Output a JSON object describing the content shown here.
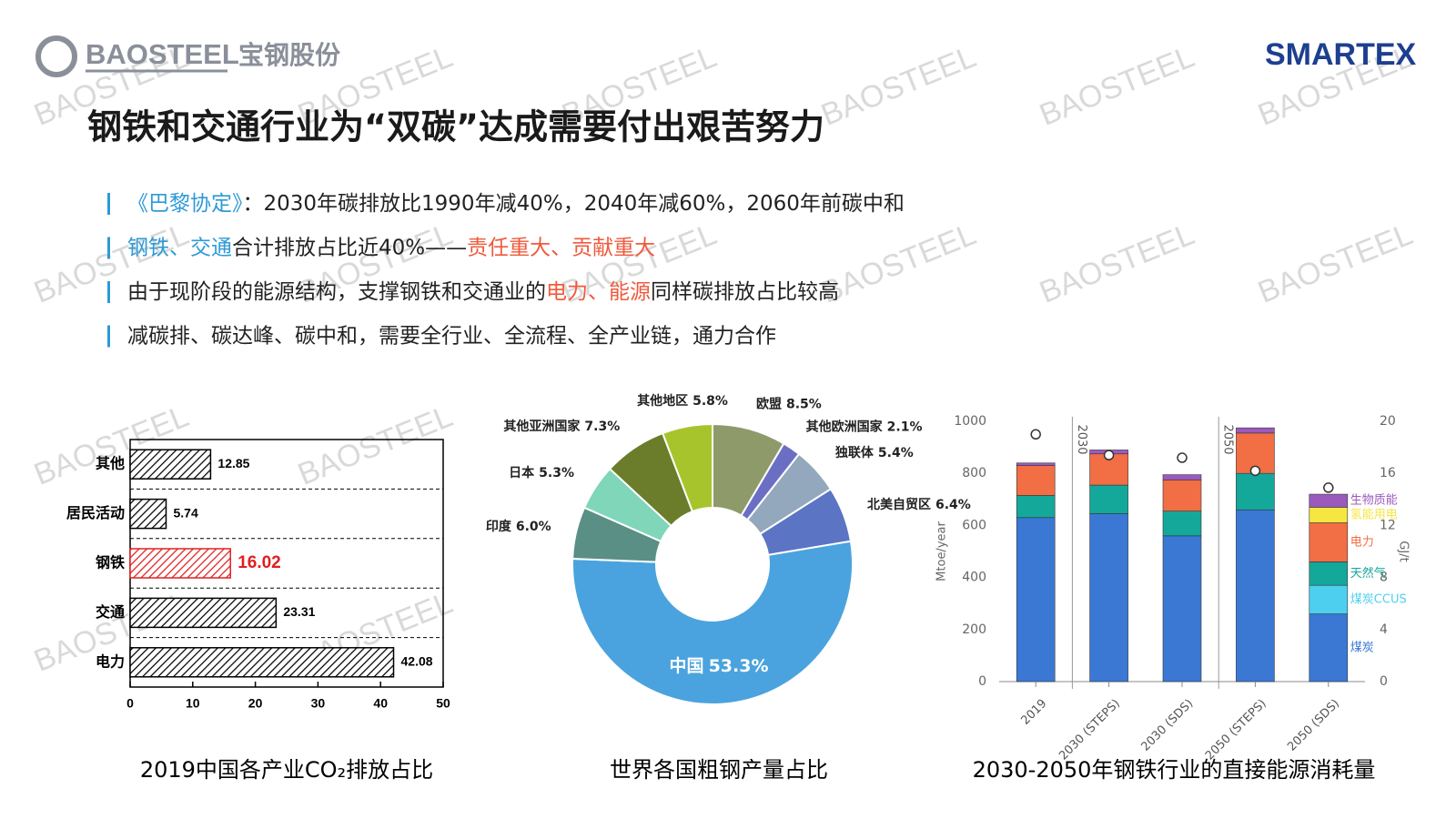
{
  "header": {
    "logo_text": "BAOSTEEL",
    "logo_cn": "宝钢股份",
    "brand": "SMARTEX",
    "watermark": "BAOSTEEL",
    "title": "钢铁和交通行业为“双碳”达成需要付出艰苦努力"
  },
  "bullets": [
    [
      {
        "text": "《巴黎协定》",
        "color": "#2e9ad6"
      },
      {
        "text": "：2030年碳排放比1990年减40%，2040年减60%，2060年前碳中和",
        "color": "#222222"
      }
    ],
    [
      {
        "text": "钢铁、交通",
        "color": "#2e9ad6"
      },
      {
        "text": "合计排放占比近40%——",
        "color": "#222222"
      },
      {
        "text": "责任重大、贡献重大",
        "color": "#ef5a3c"
      }
    ],
    [
      {
        "text": "由于现阶段的能源结构，支撑钢铁和交通业的",
        "color": "#222222"
      },
      {
        "text": "电力、能源",
        "color": "#ef5a3c"
      },
      {
        "text": "同样碳排放占比较高",
        "color": "#222222"
      }
    ],
    [
      {
        "text": "减碳排、碳达峰、碳中和，需要全行业、全流程、全产业链，通力合作",
        "color": "#222222"
      }
    ]
  ],
  "chart_data": [
    {
      "type": "hbar",
      "title": "2019中国各产业CO₂排放占比",
      "categories": [
        "其他",
        "居民活动",
        "钢铁",
        "交通",
        "电力"
      ],
      "values": [
        12.85,
        5.74,
        16.02,
        23.31,
        42.08
      ],
      "colors": [
        "#000000",
        "#000000",
        "#e02020",
        "#000000",
        "#000000"
      ],
      "xlim": [
        0,
        50
      ],
      "xticks": [
        0,
        10,
        20,
        30,
        40,
        50
      ]
    },
    {
      "type": "donut",
      "title": "世界各国粗钢产量占比",
      "categories": [
        "欧盟",
        "其他欧洲国家",
        "独联体",
        "北美自贸区",
        "中国",
        "印度",
        "日本",
        "其他亚洲国家",
        "其他地区"
      ],
      "values": [
        8.5,
        2.1,
        5.4,
        6.4,
        53.3,
        6.0,
        5.3,
        7.3,
        5.8
      ],
      "value_labels": [
        "8.5%",
        "2.1%",
        "5.4%",
        "6.4%",
        "53.3%",
        "6.0%",
        "5.3%",
        "7.3%",
        "5.8%"
      ],
      "colors": [
        "#8f9a6a",
        "#6b6fc4",
        "#94a8bd",
        "#5b74c4",
        "#4aa3de",
        "#5a8f85",
        "#7fd6b8",
        "#6b7d2a",
        "#a8c42c"
      ]
    },
    {
      "type": "stacked_bar",
      "title": "2030-2050年钢铁行业的直接能源消耗量",
      "categories": [
        "2019",
        "2030 (STEPS)",
        "2030 (SDS)",
        "2050 (STEPS)",
        "2050 (SDS)"
      ],
      "y_label": "Mtoe/year",
      "y2_label": "GJ/t",
      "ylim": [
        0,
        1000
      ],
      "yticks": [
        0,
        200,
        400,
        600,
        800,
        1000
      ],
      "y2lim": [
        0,
        20
      ],
      "y2ticks": [
        0,
        4,
        8,
        12,
        16,
        20
      ],
      "annotations": [
        "2030",
        "2050"
      ],
      "series": [
        {
          "name": "煤炭",
          "color": "#3a78d4",
          "values": [
            630,
            645,
            560,
            660,
            260
          ]
        },
        {
          "name": "煤炭CCUS",
          "color": "#4dd0f0",
          "values": [
            0,
            0,
            0,
            0,
            110
          ]
        },
        {
          "name": "天然气",
          "color": "#14a89a",
          "values": [
            85,
            110,
            95,
            140,
            90
          ]
        },
        {
          "name": "电力",
          "color": "#f26e44",
          "values": [
            115,
            120,
            120,
            155,
            150
          ]
        },
        {
          "name": "氢能用电",
          "color": "#f5e642",
          "values": [
            0,
            0,
            0,
            0,
            60
          ]
        },
        {
          "name": "生物质能",
          "color": "#9b5bbd",
          "values": [
            10,
            15,
            20,
            20,
            50
          ]
        }
      ],
      "intensity": {
        "axis": "y2",
        "values": [
          19.0,
          17.4,
          17.2,
          16.2,
          14.9
        ]
      }
    }
  ]
}
